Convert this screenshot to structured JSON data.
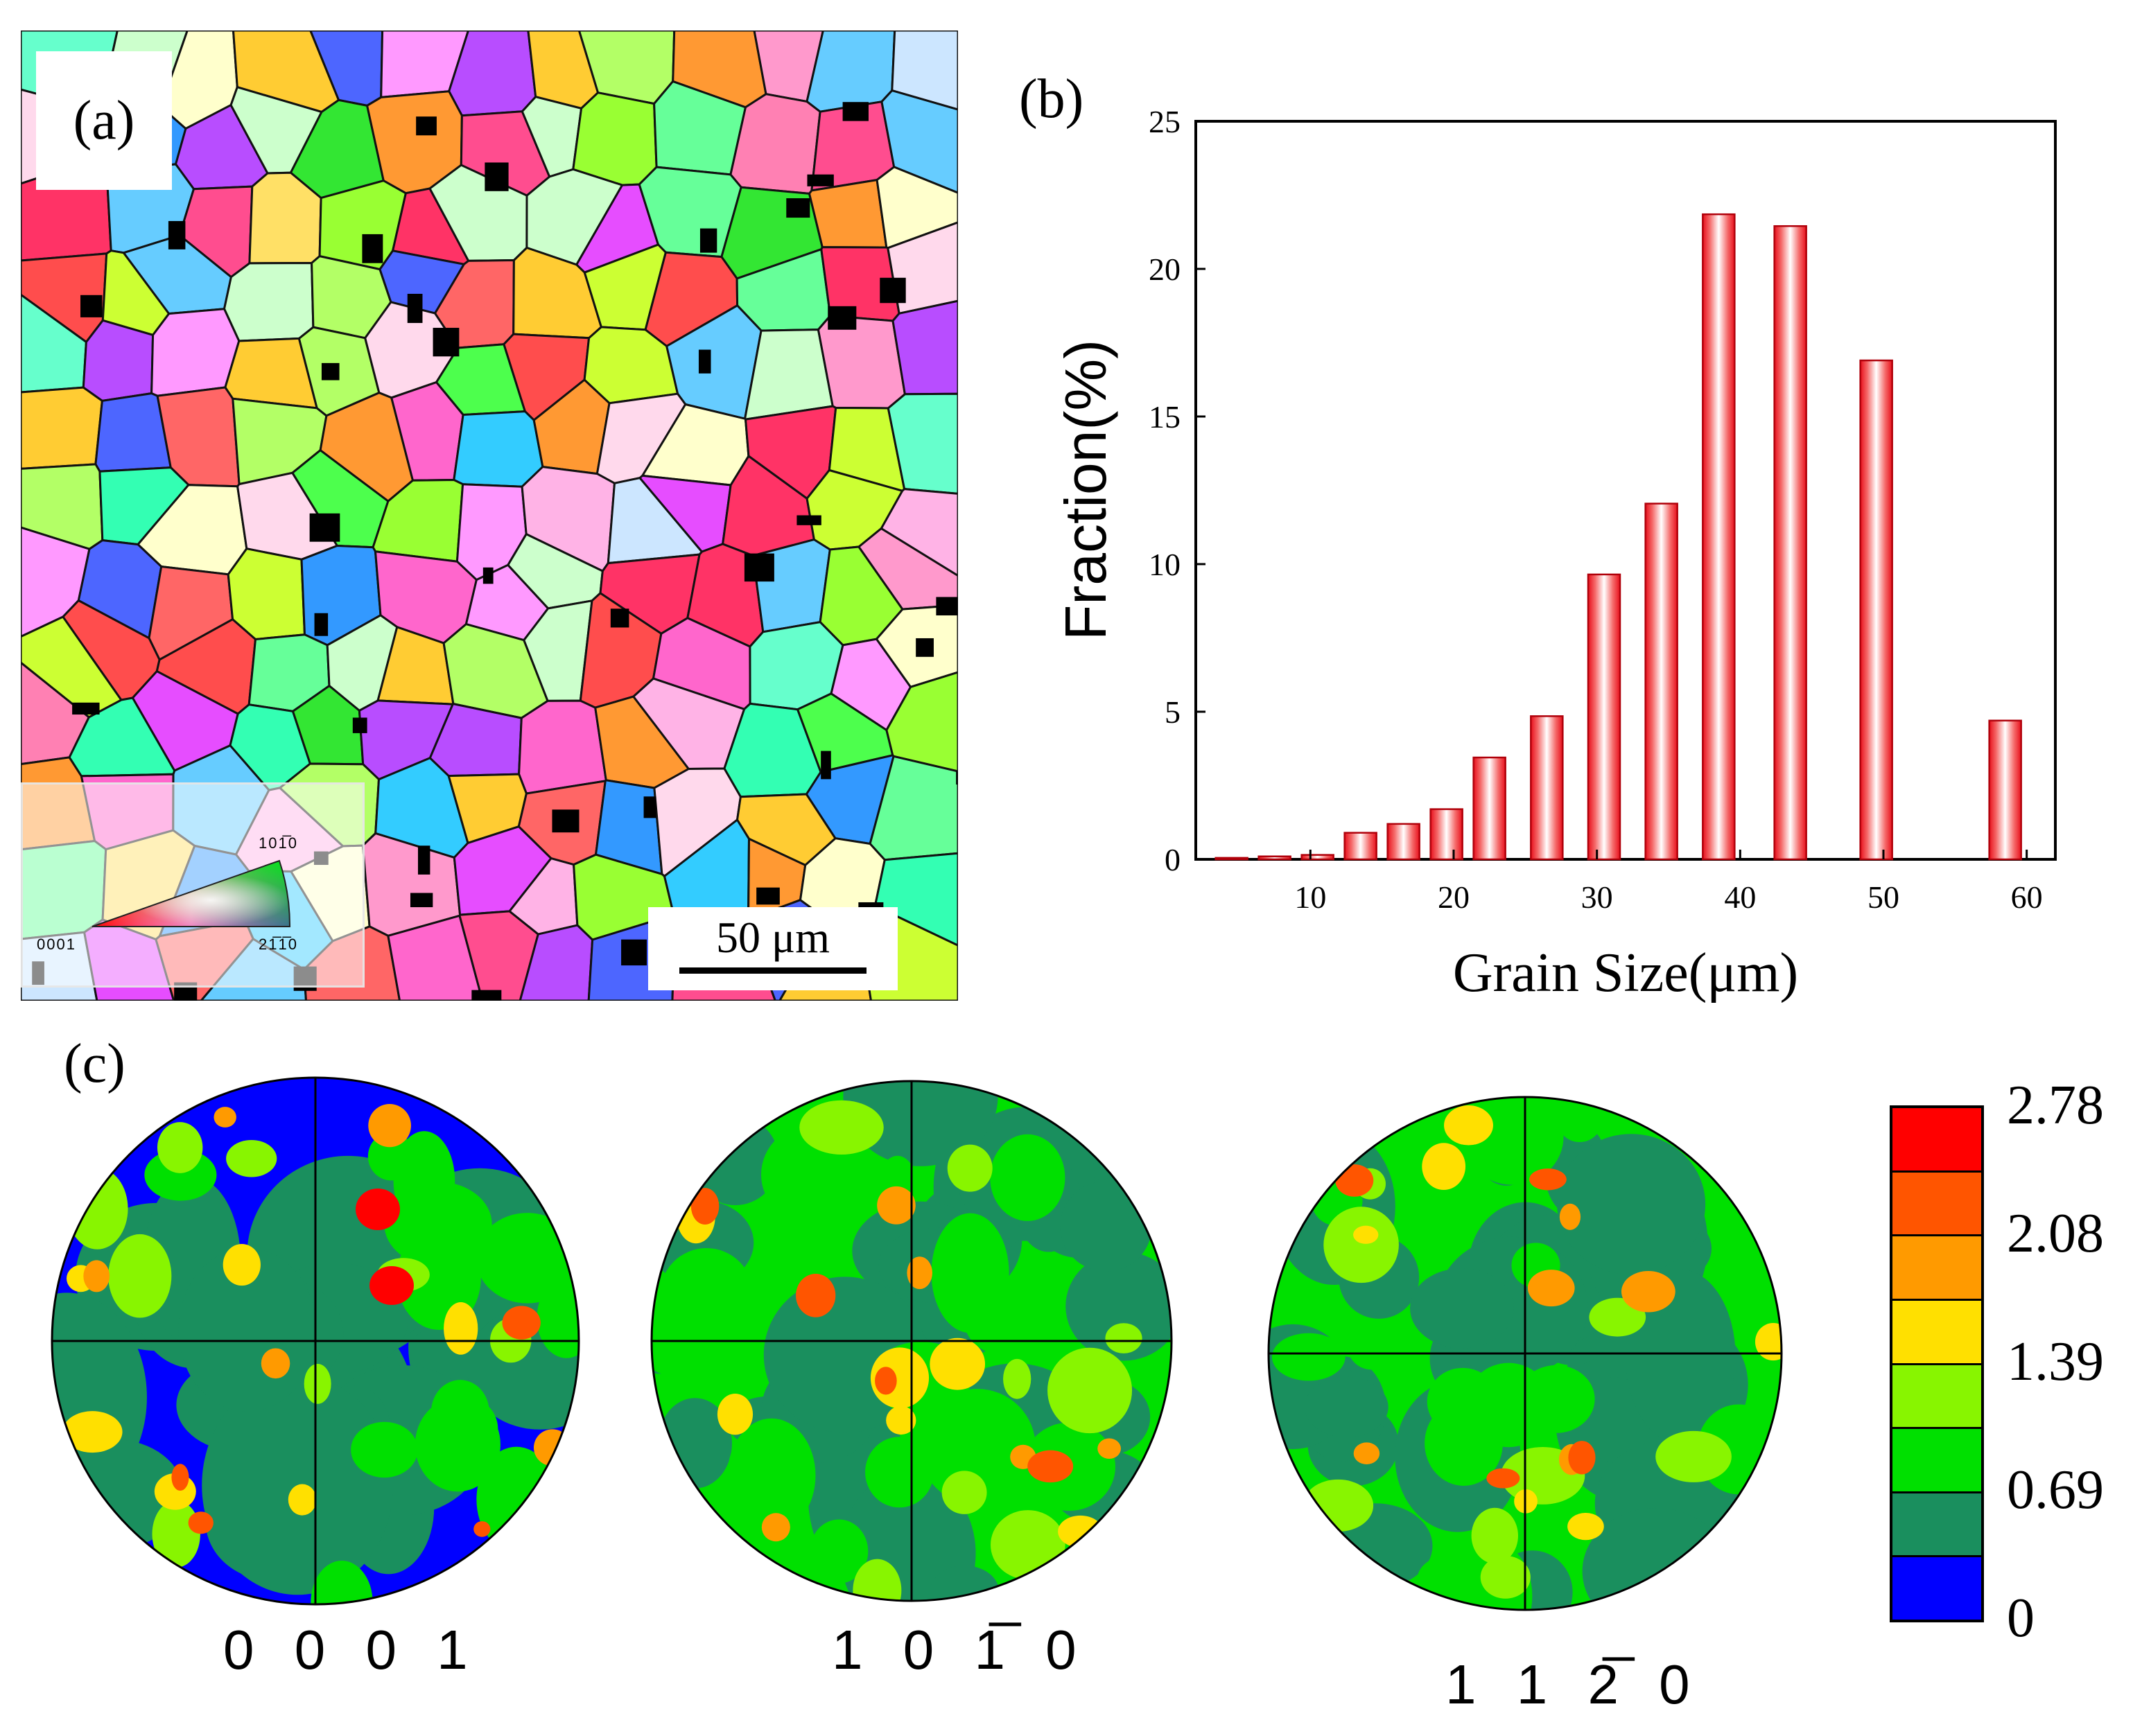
{
  "panel_a": {
    "letter": "(a)",
    "ipf_corner_0001": "0001",
    "ipf_corner_10m10": "101̅0",
    "ipf_corner_2m1m10": "21̅1̅0",
    "scale_bar_label": "50 μm"
  },
  "panel_b": {
    "letter": "(b)"
  },
  "panel_c": {
    "letter": "(c)",
    "pole_figures": [
      {
        "label": "0001",
        "label_display": "0 0 0 1"
      },
      {
        "label": "10-10",
        "label_display": "1 0 1̅ 0"
      },
      {
        "label": "11-20",
        "label_display": "1 1 2̅ 0"
      }
    ],
    "colorbar": {
      "ticks": [
        "2.78",
        "2.08",
        "1.39",
        "0.69",
        "0"
      ],
      "colors": [
        "#0000ff",
        "#1a8f5e",
        "#00e000",
        "#88f500",
        "#ffe000",
        "#ff9a00",
        "#ff5500",
        "#ff0000"
      ]
    }
  },
  "chart_data": {
    "type": "bar",
    "xlabel": "Grain Size(μm)",
    "ylabel": "Fraction(%)",
    "xlim": [
      2,
      62
    ],
    "ylim": [
      0,
      25
    ],
    "xticks": [
      10,
      20,
      30,
      40,
      50,
      60
    ],
    "yticks": [
      0,
      5,
      10,
      15,
      20,
      25
    ],
    "bin_centers": [
      4.5,
      7.5,
      10.5,
      13.5,
      16.5,
      19.5,
      22.5,
      26.5,
      30.5,
      34.5,
      38.5,
      43.5,
      49.5,
      58.5
    ],
    "values": [
      0.05,
      0.1,
      0.15,
      0.9,
      1.2,
      1.7,
      3.45,
      4.85,
      9.65,
      12.05,
      21.85,
      21.45,
      16.9,
      4.7
    ],
    "bar_fill": "gradient red-white-red"
  }
}
